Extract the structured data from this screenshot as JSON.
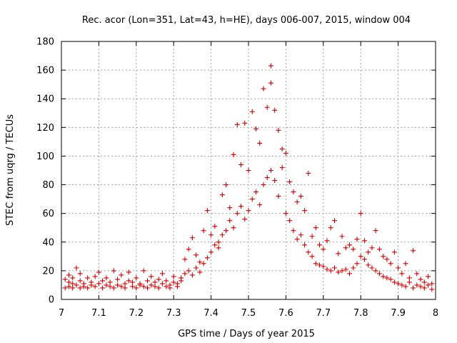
{
  "chart_data": {
    "type": "scatter",
    "title": "Rec. acor (Lon=351, Lat=43, h=HE), days 006-007, 2015, window 004",
    "xlabel": "GPS time / Days of year 2015",
    "ylabel": "STEC from uqrg / TECUs",
    "xlim": [
      7,
      8
    ],
    "ylim": [
      0,
      180
    ],
    "xticks": [
      7,
      7.1,
      7.2,
      7.3,
      7.4,
      7.5,
      7.6,
      7.7,
      7.8,
      7.9,
      8
    ],
    "xtick_labels": [
      "7",
      "7.1",
      "7.2",
      "7.3",
      "7.4",
      "7.5",
      "7.6",
      "7.7",
      "7.8",
      "7.9",
      "8"
    ],
    "yticks": [
      0,
      20,
      40,
      60,
      80,
      100,
      120,
      140,
      160,
      180
    ],
    "ytick_labels": [
      "0",
      "20",
      "40",
      "60",
      "80",
      "100",
      "120",
      "140",
      "160",
      "180"
    ],
    "grid": true,
    "marker": "plus",
    "color": "#cc0000",
    "series": [
      {
        "name": "STEC",
        "points": [
          [
            7.01,
            8
          ],
          [
            7.01,
            14
          ],
          [
            7.02,
            9
          ],
          [
            7.02,
            12
          ],
          [
            7.02,
            17
          ],
          [
            7.03,
            8
          ],
          [
            7.03,
            11
          ],
          [
            7.03,
            15
          ],
          [
            7.04,
            10
          ],
          [
            7.04,
            22
          ],
          [
            7.05,
            8
          ],
          [
            7.05,
            13
          ],
          [
            7.05,
            18
          ],
          [
            7.06,
            9
          ],
          [
            7.06,
            11
          ],
          [
            7.07,
            15
          ],
          [
            7.07,
            8
          ],
          [
            7.08,
            12
          ],
          [
            7.08,
            10
          ],
          [
            7.09,
            9
          ],
          [
            7.09,
            16
          ],
          [
            7.1,
            11
          ],
          [
            7.1,
            19
          ],
          [
            7.11,
            8
          ],
          [
            7.11,
            13
          ],
          [
            7.12,
            10
          ],
          [
            7.12,
            15
          ],
          [
            7.13,
            9
          ],
          [
            7.13,
            12
          ],
          [
            7.14,
            8
          ],
          [
            7.14,
            20
          ],
          [
            7.15,
            10
          ],
          [
            7.15,
            14
          ],
          [
            7.16,
            9
          ],
          [
            7.16,
            17
          ],
          [
            7.17,
            11
          ],
          [
            7.17,
            8
          ],
          [
            7.18,
            13
          ],
          [
            7.18,
            19
          ],
          [
            7.19,
            9
          ],
          [
            7.19,
            12
          ],
          [
            7.2,
            8
          ],
          [
            7.2,
            15
          ],
          [
            7.21,
            10
          ],
          [
            7.21,
            11
          ],
          [
            7.22,
            9
          ],
          [
            7.22,
            20
          ],
          [
            7.23,
            13
          ],
          [
            7.23,
            8
          ],
          [
            7.24,
            10
          ],
          [
            7.24,
            16
          ],
          [
            7.25,
            9
          ],
          [
            7.25,
            12
          ],
          [
            7.26,
            8
          ],
          [
            7.26,
            14
          ],
          [
            7.27,
            11
          ],
          [
            7.27,
            18
          ],
          [
            7.28,
            9
          ],
          [
            7.28,
            13
          ],
          [
            7.29,
            10
          ],
          [
            7.29,
            8
          ],
          [
            7.3,
            12
          ],
          [
            7.3,
            16
          ],
          [
            7.31,
            11
          ],
          [
            7.31,
            9
          ],
          [
            7.32,
            15
          ],
          [
            7.32,
            13
          ],
          [
            7.33,
            18
          ],
          [
            7.33,
            28
          ],
          [
            7.34,
            20
          ],
          [
            7.34,
            35
          ],
          [
            7.35,
            17
          ],
          [
            7.35,
            43
          ],
          [
            7.36,
            22
          ],
          [
            7.36,
            31
          ],
          [
            7.37,
            19
          ],
          [
            7.37,
            26
          ],
          [
            7.38,
            25
          ],
          [
            7.38,
            48
          ],
          [
            7.39,
            29
          ],
          [
            7.39,
            62
          ],
          [
            7.4,
            33
          ],
          [
            7.4,
            45
          ],
          [
            7.41,
            38
          ],
          [
            7.41,
            51
          ],
          [
            7.42,
            36
          ],
          [
            7.42,
            40
          ],
          [
            7.43,
            45
          ],
          [
            7.43,
            73
          ],
          [
            7.44,
            48
          ],
          [
            7.44,
            80
          ],
          [
            7.45,
            55
          ],
          [
            7.45,
            64
          ],
          [
            7.46,
            50
          ],
          [
            7.46,
            101
          ],
          [
            7.47,
            60
          ],
          [
            7.47,
            122
          ],
          [
            7.48,
            65
          ],
          [
            7.48,
            94
          ],
          [
            7.49,
            56
          ],
          [
            7.49,
            123
          ],
          [
            7.5,
            62
          ],
          [
            7.5,
            90
          ],
          [
            7.51,
            70
          ],
          [
            7.51,
            131
          ],
          [
            7.52,
            75
          ],
          [
            7.52,
            119
          ],
          [
            7.53,
            66
          ],
          [
            7.53,
            109
          ],
          [
            7.54,
            80
          ],
          [
            7.54,
            147
          ],
          [
            7.55,
            85
          ],
          [
            7.55,
            134
          ],
          [
            7.56,
            90
          ],
          [
            7.56,
            151
          ],
          [
            7.56,
            163
          ],
          [
            7.57,
            83
          ],
          [
            7.57,
            132
          ],
          [
            7.58,
            72
          ],
          [
            7.58,
            118
          ],
          [
            7.59,
            92
          ],
          [
            7.59,
            105
          ],
          [
            7.6,
            60
          ],
          [
            7.6,
            102
          ],
          [
            7.61,
            55
          ],
          [
            7.61,
            82
          ],
          [
            7.62,
            48
          ],
          [
            7.62,
            75
          ],
          [
            7.63,
            42
          ],
          [
            7.63,
            68
          ],
          [
            7.64,
            45
          ],
          [
            7.64,
            72
          ],
          [
            7.65,
            38
          ],
          [
            7.65,
            62
          ],
          [
            7.66,
            33
          ],
          [
            7.66,
            88
          ],
          [
            7.67,
            30
          ],
          [
            7.67,
            44
          ],
          [
            7.68,
            25
          ],
          [
            7.68,
            50
          ],
          [
            7.69,
            24
          ],
          [
            7.69,
            38
          ],
          [
            7.7,
            23
          ],
          [
            7.7,
            35
          ],
          [
            7.71,
            21
          ],
          [
            7.71,
            41
          ],
          [
            7.72,
            20
          ],
          [
            7.72,
            50
          ],
          [
            7.73,
            22
          ],
          [
            7.73,
            55
          ],
          [
            7.74,
            19
          ],
          [
            7.74,
            32
          ],
          [
            7.75,
            20
          ],
          [
            7.75,
            44
          ],
          [
            7.76,
            21
          ],
          [
            7.76,
            36
          ],
          [
            7.77,
            18
          ],
          [
            7.77,
            38
          ],
          [
            7.78,
            22
          ],
          [
            7.78,
            35
          ],
          [
            7.79,
            25
          ],
          [
            7.79,
            42
          ],
          [
            7.8,
            30
          ],
          [
            7.8,
            60
          ],
          [
            7.81,
            28
          ],
          [
            7.81,
            41
          ],
          [
            7.82,
            24
          ],
          [
            7.82,
            33
          ],
          [
            7.83,
            22
          ],
          [
            7.83,
            36
          ],
          [
            7.84,
            20
          ],
          [
            7.84,
            48
          ],
          [
            7.85,
            18
          ],
          [
            7.85,
            35
          ],
          [
            7.86,
            16
          ],
          [
            7.86,
            30
          ],
          [
            7.87,
            15
          ],
          [
            7.87,
            28
          ],
          [
            7.88,
            14
          ],
          [
            7.88,
            25
          ],
          [
            7.89,
            12
          ],
          [
            7.89,
            33
          ],
          [
            7.9,
            11
          ],
          [
            7.9,
            22
          ],
          [
            7.91,
            10
          ],
          [
            7.91,
            18
          ],
          [
            7.92,
            9
          ],
          [
            7.92,
            25
          ],
          [
            7.93,
            12
          ],
          [
            7.93,
            15
          ],
          [
            7.94,
            8
          ],
          [
            7.94,
            34
          ],
          [
            7.95,
            10
          ],
          [
            7.95,
            18
          ],
          [
            7.96,
            9
          ],
          [
            7.96,
            14
          ],
          [
            7.97,
            8
          ],
          [
            7.97,
            12
          ],
          [
            7.98,
            10
          ],
          [
            7.98,
            16
          ],
          [
            7.99,
            7
          ],
          [
            7.99,
            11
          ]
        ]
      }
    ]
  }
}
